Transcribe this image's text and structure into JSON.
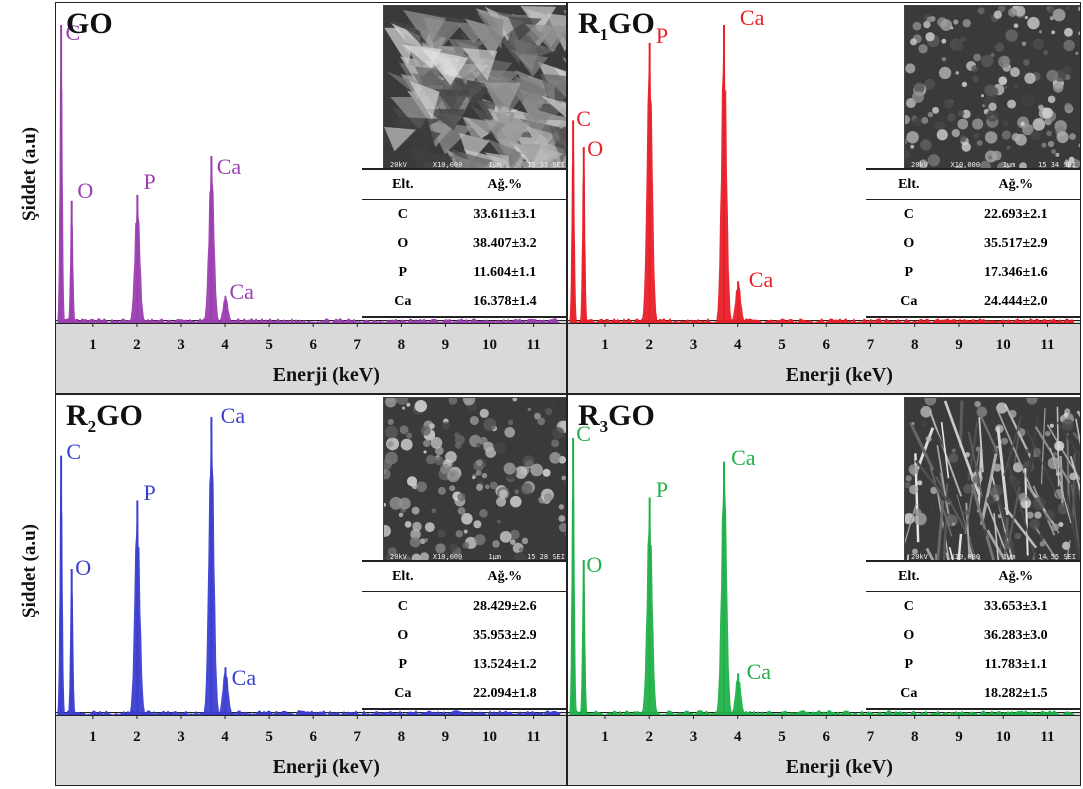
{
  "y_axis_label": "Şiddet (a.u)",
  "x_axis_label": "Enerji (keV)",
  "x_ticks": [
    "1",
    "2",
    "3",
    "4",
    "5",
    "6",
    "7",
    "8",
    "9",
    "10",
    "11"
  ],
  "table_headers": [
    "Elt.",
    "Ağ.%"
  ],
  "sem_caption": {
    "voltage": "20kV",
    "mag": "X10,000",
    "scale": "1μm",
    "time_a": "15 33 SEI",
    "time_b": "15 34 SEI",
    "time_c": "15 28 SEI",
    "time_d": "14 55 SEI"
  },
  "chart_data": [
    {
      "type": "bar",
      "title_main": "GO",
      "title_sub": "",
      "color": "#9b3fb0",
      "xlabel": "Enerji (keV)",
      "ylabel": "Şiddet (a.u)",
      "xlim": [
        0.3,
        11.6
      ],
      "peaks": [
        {
          "element": "C",
          "energy": 0.28,
          "intensity": 1.0
        },
        {
          "element": "O",
          "energy": 0.52,
          "intensity": 0.41
        },
        {
          "element": "P",
          "energy": 2.01,
          "intensity": 0.43
        },
        {
          "element": "Ca",
          "energy": 3.69,
          "intensity": 0.56
        },
        {
          "element": "Ca",
          "energy": 4.01,
          "intensity": 0.09
        }
      ],
      "labels": [
        {
          "text": "C",
          "energy": 0.38,
          "height": 0.93
        },
        {
          "text": "O",
          "energy": 0.65,
          "height": 0.4
        },
        {
          "text": "P",
          "energy": 2.15,
          "height": 0.43
        },
        {
          "text": "Ca",
          "energy": 3.81,
          "height": 0.48
        },
        {
          "text": "Ca",
          "energy": 4.1,
          "height": 0.06
        }
      ],
      "composition": [
        {
          "element": "C",
          "wt": "33.611±3.1"
        },
        {
          "element": "O",
          "wt": "38.407±3.2"
        },
        {
          "element": "P",
          "wt": "11.604±1.1"
        },
        {
          "element": "Ca",
          "wt": "16.378±1.4"
        }
      ]
    },
    {
      "type": "bar",
      "title_main": "R",
      "title_sub": "1",
      "title_suffix": "GO",
      "color": "#e8202a",
      "xlabel": "Enerji (keV)",
      "ylabel": "Şiddet (a.u)",
      "xlim": [
        0.3,
        11.6
      ],
      "peaks": [
        {
          "element": "C",
          "energy": 0.28,
          "intensity": 0.68
        },
        {
          "element": "O",
          "energy": 0.52,
          "intensity": 0.59
        },
        {
          "element": "P",
          "energy": 2.01,
          "intensity": 0.94
        },
        {
          "element": "Ca",
          "energy": 3.69,
          "intensity": 1.0
        },
        {
          "element": "Ca",
          "energy": 4.01,
          "intensity": 0.14
        }
      ],
      "labels": [
        {
          "text": "C",
          "energy": 0.35,
          "height": 0.64
        },
        {
          "text": "O",
          "energy": 0.6,
          "height": 0.54
        },
        {
          "text": "P",
          "energy": 2.15,
          "height": 0.92
        },
        {
          "text": "Ca",
          "energy": 4.05,
          "height": 0.98
        },
        {
          "text": "Ca",
          "energy": 4.25,
          "height": 0.1
        }
      ],
      "composition": [
        {
          "element": "C",
          "wt": "22.693±2.1"
        },
        {
          "element": "O",
          "wt": "35.517±2.9"
        },
        {
          "element": "P",
          "wt": "17.346±1.6"
        },
        {
          "element": "Ca",
          "wt": "24.444±2.0"
        }
      ]
    },
    {
      "type": "bar",
      "title_main": "R",
      "title_sub": "2",
      "title_suffix": "GO",
      "color": "#3a3fd0",
      "xlabel": "Enerji (keV)",
      "ylabel": "Şiddet (a.u)",
      "xlim": [
        0.3,
        11.6
      ],
      "peaks": [
        {
          "element": "C",
          "energy": 0.28,
          "intensity": 0.87
        },
        {
          "element": "O",
          "energy": 0.52,
          "intensity": 0.49
        },
        {
          "element": "P",
          "energy": 2.01,
          "intensity": 0.72
        },
        {
          "element": "Ca",
          "energy": 3.69,
          "intensity": 1.0
        },
        {
          "element": "Ca",
          "energy": 4.01,
          "intensity": 0.16
        }
      ],
      "labels": [
        {
          "text": "C",
          "energy": 0.4,
          "height": 0.84
        },
        {
          "text": "O",
          "energy": 0.6,
          "height": 0.45
        },
        {
          "text": "P",
          "energy": 2.15,
          "height": 0.7
        },
        {
          "text": "Ca",
          "energy": 3.9,
          "height": 0.96
        },
        {
          "text": "Ca",
          "energy": 4.15,
          "height": 0.08
        }
      ],
      "composition": [
        {
          "element": "C",
          "wt": "28.429±2.6"
        },
        {
          "element": "O",
          "wt": "35.953±2.9"
        },
        {
          "element": "P",
          "wt": "13.524±1.2"
        },
        {
          "element": "Ca",
          "wt": "22.094±1.8"
        }
      ]
    },
    {
      "type": "bar",
      "title_main": "R",
      "title_sub": "3",
      "title_suffix": "GO",
      "color": "#22b04a",
      "xlabel": "Enerji (keV)",
      "ylabel": "Şiddet (a.u)",
      "xlim": [
        0.3,
        11.6
      ],
      "peaks": [
        {
          "element": "C",
          "energy": 0.28,
          "intensity": 0.93
        },
        {
          "element": "O",
          "energy": 0.52,
          "intensity": 0.52
        },
        {
          "element": "P",
          "energy": 2.01,
          "intensity": 0.73
        },
        {
          "element": "Ca",
          "energy": 3.69,
          "intensity": 0.85
        },
        {
          "element": "Ca",
          "energy": 4.01,
          "intensity": 0.14
        }
      ],
      "labels": [
        {
          "text": "C",
          "energy": 0.35,
          "height": 0.9
        },
        {
          "text": "O",
          "energy": 0.58,
          "height": 0.46
        },
        {
          "text": "P",
          "energy": 2.15,
          "height": 0.71
        },
        {
          "text": "Ca",
          "energy": 3.85,
          "height": 0.82
        },
        {
          "text": "Ca",
          "energy": 4.2,
          "height": 0.1
        }
      ],
      "composition": [
        {
          "element": "C",
          "wt": "33.653±3.1"
        },
        {
          "element": "O",
          "wt": "36.283±3.0"
        },
        {
          "element": "P",
          "wt": "11.783±1.1"
        },
        {
          "element": "Ca",
          "wt": "18.282±1.5"
        }
      ]
    }
  ]
}
